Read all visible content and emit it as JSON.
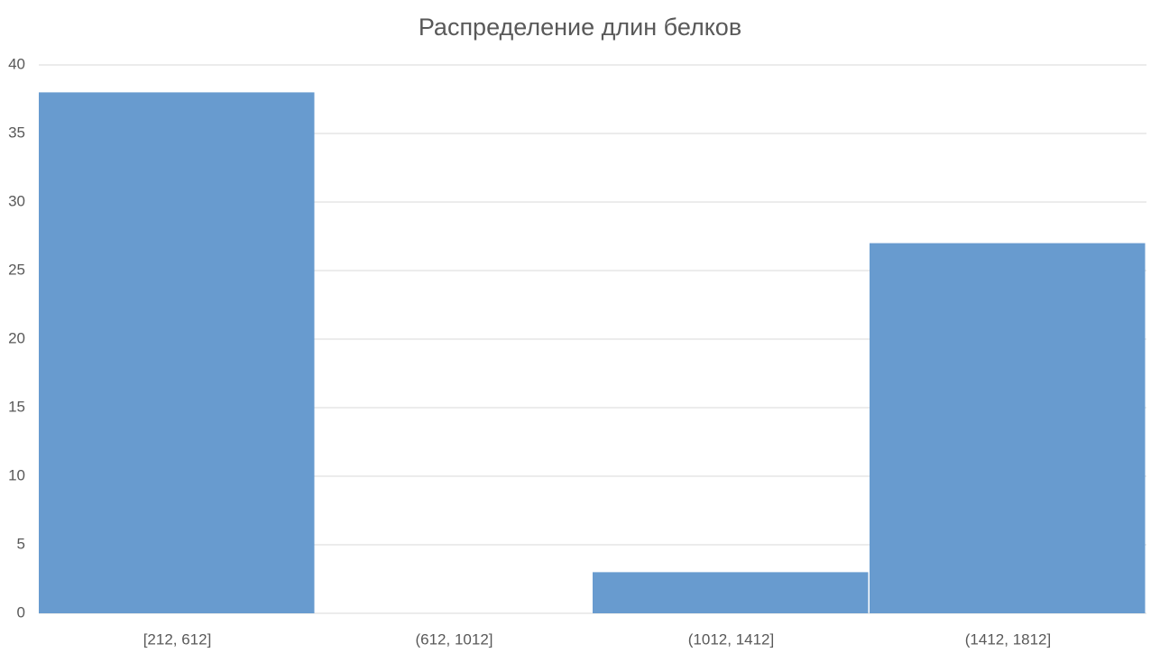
{
  "chart_data": {
    "type": "bar",
    "title": "Распределение длин белков",
    "categories": [
      "[212, 612]",
      "(612, 1012]",
      "(1012, 1412]",
      "(1412, 1812]"
    ],
    "values": [
      38,
      0,
      3,
      27
    ],
    "color": "#689bcf",
    "ylim": [
      0,
      40
    ],
    "yticks": [
      0,
      5,
      10,
      15,
      20,
      25,
      30,
      35,
      40
    ],
    "grid": true
  }
}
